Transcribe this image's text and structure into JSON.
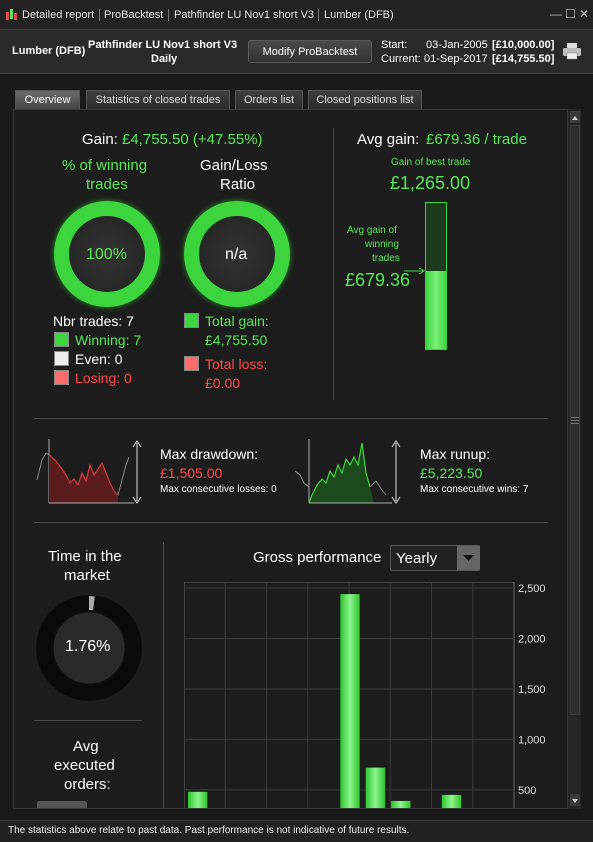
{
  "titlebar": {
    "tab1": "Detailed report",
    "tab2": "ProBacktest",
    "tab3": "Pathfinder LU Nov1 short V3",
    "tab4": "Lumber (DFB)"
  },
  "header": {
    "instrument": "Lumber (DFB)",
    "strategy": "Pathfinder LU Nov1 short V3",
    "timeframe": "Daily",
    "modify_button": "Modify ProBacktest",
    "start_label": "Start:",
    "start_date": "03-Jan-2005",
    "start_value": "[£10,000.00]",
    "current_label": "Current:",
    "current_date": "01-Sep-2017",
    "current_value": "[£14,755.50]"
  },
  "tabs": [
    "Overview",
    "Statistics of closed trades",
    "Orders list",
    "Closed positions list"
  ],
  "overview": {
    "gain_label": "Gain:",
    "gain_value": "£4,755.50 (+47.55%)",
    "winning_title_1": "% of winning",
    "winning_title_2": "trades",
    "winning_pct": "100%",
    "gainloss_title_1": "Gain/Loss",
    "gainloss_title_2": "Ratio",
    "gainloss_value": "n/a",
    "nbr_trades": "Nbr trades: 7",
    "winning": "Winning: 7",
    "even": "Even: 0",
    "losing": "Losing: 0",
    "total_gain_label": "Total gain:",
    "total_gain_value": "£4,755.50",
    "total_loss_label": "Total loss:",
    "total_loss_value": "£0.00",
    "avg_gain_label": "Avg gain:",
    "avg_gain_value": "£679.36 / trade",
    "best_trade_label": "Gain of best trade",
    "best_trade_value": "£1,265.00",
    "avg_winning_1": "Avg gain of",
    "avg_winning_2": "winning",
    "avg_winning_3": "trades",
    "avg_winning_value": "£679.36",
    "avg_bar_fraction": 0.537,
    "max_drawdown_label": "Max drawdown:",
    "max_drawdown_value": "£1,505.00",
    "max_consec_losses": "Max consecutive losses: 0",
    "max_runup_label": "Max runup:",
    "max_runup_value": "£5,223.50",
    "max_consec_wins": "Max consecutive wins: 7",
    "time_market_1": "Time in the",
    "time_market_2": "market",
    "time_market_value": "1.76%",
    "time_market_fraction": 0.0176,
    "avg_exec_1": "Avg",
    "avg_exec_2": "executed",
    "avg_exec_3": "orders:",
    "gross_perf_label": "Gross performance",
    "period_select": "Yearly"
  },
  "chart_data": {
    "type": "bar",
    "yticks": [
      500,
      1000,
      1500,
      2000,
      2500
    ],
    "ylim": [
      300,
      2560
    ],
    "values": [
      480,
      2440,
      720,
      390,
      450
    ],
    "slots": [
      0,
      6,
      7,
      8,
      10
    ],
    "nslots": 13,
    "grid": true
  },
  "colors": {
    "accent_green": "#5ae65a",
    "loss_red": "#ff4b4b"
  },
  "footer": {
    "disclaimer": "The statistics above relate to past data. Past performance is not indicative of future results."
  }
}
